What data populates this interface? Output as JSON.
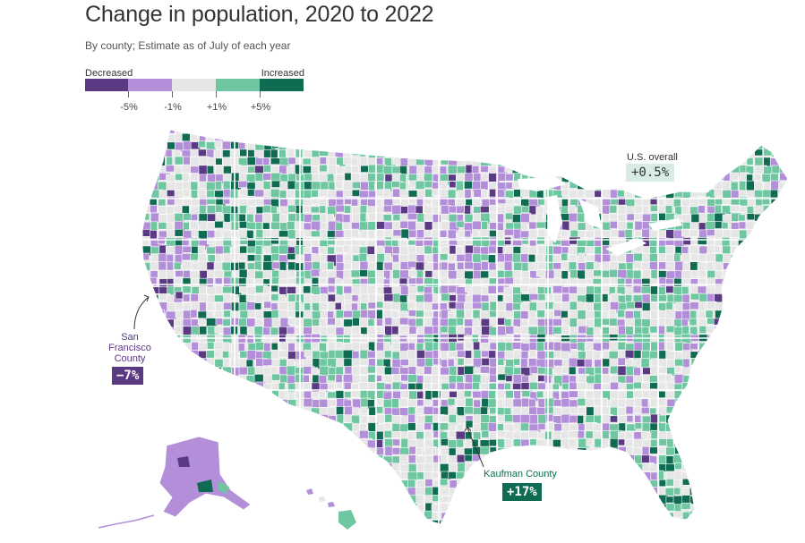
{
  "header": {
    "title": "Change in population, 2020 to 2022",
    "subtitle": "By county; Estimate as of July of each year"
  },
  "legend": {
    "left_label": "Decreased",
    "right_label": "Increased",
    "ticks": [
      "-5%",
      "-1%",
      "+1%",
      "+5%"
    ],
    "bins": [
      {
        "name": "below -5%",
        "color": "#5a3a82"
      },
      {
        "name": "-5% to -1%",
        "color": "#b48fd9"
      },
      {
        "name": "-1% to +1%",
        "color": "#e6e6e6"
      },
      {
        "name": "+1% to +5%",
        "color": "#6fc7a1"
      },
      {
        "name": "above +5%",
        "color": "#0f6b52"
      }
    ]
  },
  "annotations": {
    "us_overall": {
      "label": "U.S. overall",
      "value": "+0.5%"
    },
    "sf": {
      "label_lines": [
        "San",
        "Francisco",
        "County"
      ],
      "value": "−7%",
      "color": "#5a3a82"
    },
    "kaufman": {
      "label": "Kaufman County",
      "value": "+17%",
      "color": "#0f6b52"
    }
  },
  "colors": {
    "dark_purple": "#5a3a82",
    "light_purple": "#b48fd9",
    "gray": "#e6e6e6",
    "light_green": "#6fc7a1",
    "dark_green": "#0f6b52",
    "border": "#ffffff"
  }
}
